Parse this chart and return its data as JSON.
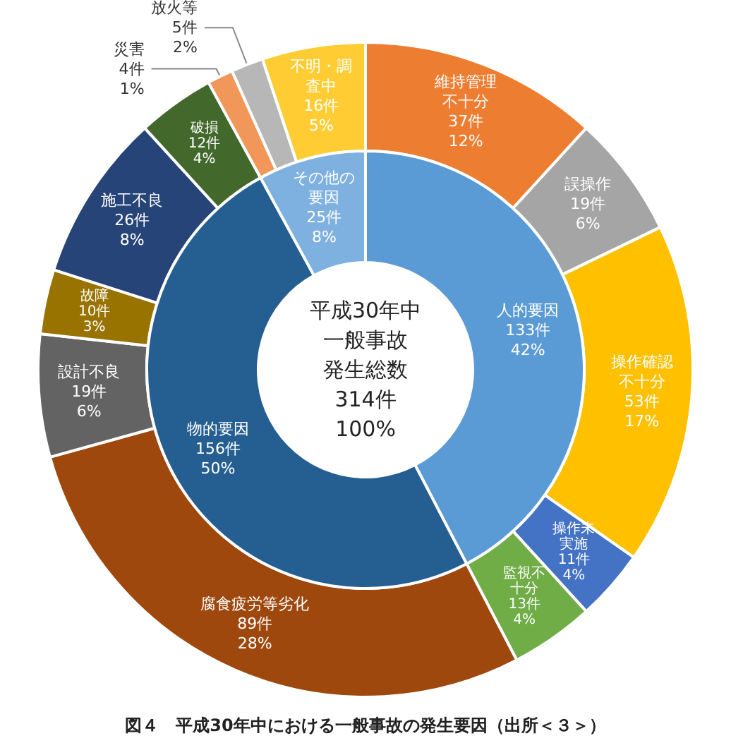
{
  "chart_data": [
    {
      "type": "donut",
      "title": "図４　平成30年中における一般事故の発生要因（出所＜３＞）",
      "annotations": [
        "平成30年中",
        "一般事故",
        "発生総数",
        "314件",
        "100%"
      ],
      "legend": false,
      "categories": [
        "人的要因",
        "物的要因",
        "その他の要因"
      ],
      "values": [
        133,
        156,
        25
      ],
      "colors": [
        "#5b9bd5",
        "#255e91",
        "#7fb1e0"
      ],
      "value_labels": [
        "133件\n42%",
        "156件\n50%",
        "25件\n8%"
      ]
    },
    {
      "type": "donut",
      "legend": false,
      "categories": [
        "維持管理不十分",
        "誤操作",
        "操作確認不十分",
        "操作未実施",
        "監視不十分",
        "腐食疲労等劣化",
        "設計不良",
        "故障",
        "施工不良",
        "破損",
        "災害",
        "放火等",
        "不明・調査中"
      ],
      "values": [
        37,
        19,
        53,
        11,
        13,
        89,
        19,
        10,
        26,
        12,
        4,
        5,
        16
      ],
      "colors": [
        "#ed7d31",
        "#a5a5a5",
        "#ffc000",
        "#4472c4",
        "#70ad47",
        "#9e480e",
        "#636363",
        "#997300",
        "#264478",
        "#43682b",
        "#f1975a",
        "#b7b7b7",
        "#ffcd33"
      ],
      "value_labels": [
        "37件\n12%",
        "19件\n6%",
        "53件\n17%",
        "11件\n4%",
        "13件\n4%",
        "89件\n28%",
        "19件\n6%",
        "10件\n3%",
        "26件\n8%",
        "12件\n4%",
        "4件\n1%",
        "5件\n2%",
        "16件\n5%"
      ]
    }
  ]
}
